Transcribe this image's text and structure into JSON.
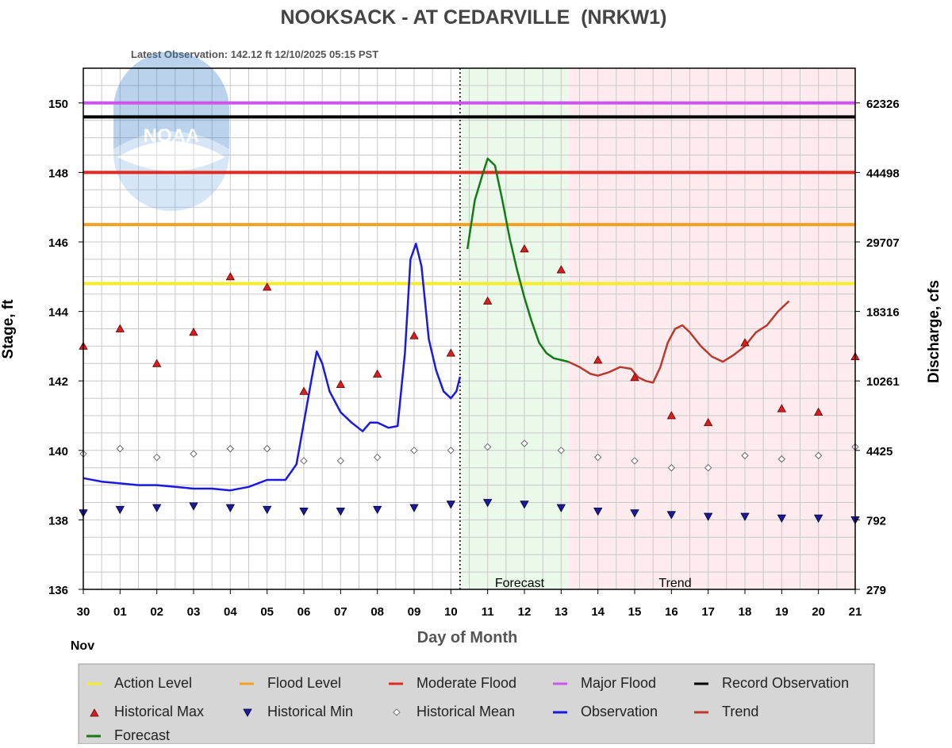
{
  "chart_data": {
    "type": "line",
    "title": "NOOKSACK - AT CEDARVILLE  (NRKW1)",
    "subtitle": "Latest Observation: 142.12 ft 12/10/2025 05:15 PST",
    "xlabel": "Day of Month",
    "ylabel": "Stage, ft",
    "y2label": "Discharge, cfs",
    "month_label": "Nov",
    "xlim": [
      0,
      21
    ],
    "ylim": [
      136,
      151
    ],
    "x_tick_labels": [
      "30",
      "01",
      "02",
      "03",
      "04",
      "05",
      "06",
      "07",
      "08",
      "09",
      "10",
      "11",
      "12",
      "13",
      "14",
      "15",
      "16",
      "17",
      "18",
      "19",
      "20",
      "21"
    ],
    "y_ticks": [
      136,
      138,
      140,
      142,
      144,
      146,
      148,
      150
    ],
    "y2_ticks": [
      {
        "stage": 136,
        "label": "279"
      },
      {
        "stage": 138,
        "label": "792"
      },
      {
        "stage": 140,
        "label": "4425"
      },
      {
        "stage": 142,
        "label": "10261"
      },
      {
        "stage": 144,
        "label": "18316"
      },
      {
        "stage": 146,
        "label": "29707"
      },
      {
        "stage": 148,
        "label": "44498"
      },
      {
        "stage": 150,
        "label": "62326"
      }
    ],
    "grid": true,
    "logo_text": "NOAA",
    "regions": [
      {
        "name": "Forecast",
        "x": [
          10.3,
          13.2
        ],
        "color": "#eaf9ea"
      },
      {
        "name": "Trend",
        "x": [
          13.2,
          21
        ],
        "color": "#fdebee"
      }
    ],
    "latest_obs_x": 10.25,
    "thresholds": [
      {
        "name": "Action Level",
        "value": 144.8,
        "color": "#f5ec2b"
      },
      {
        "name": "Flood Level",
        "value": 146.5,
        "color": "#f5a021"
      },
      {
        "name": "Moderate Flood",
        "value": 148.0,
        "color": "#e22a22"
      },
      {
        "name": "Major Flood",
        "value": 150.0,
        "color": "#cc55ee"
      },
      {
        "name": "Record Observation",
        "value": 149.6,
        "color": "#000000"
      }
    ],
    "series": [
      {
        "name": "Observation",
        "color": "#1a1adf",
        "x": [
          0,
          0.5,
          1,
          1.5,
          2,
          2.5,
          3,
          3.5,
          4,
          4.5,
          5,
          5.5,
          5.8,
          6.0,
          6.2,
          6.35,
          6.5,
          6.7,
          7.0,
          7.3,
          7.6,
          7.8,
          8.0,
          8.3,
          8.55,
          8.75,
          8.9,
          9.05,
          9.2,
          9.4,
          9.6,
          9.8,
          10.0,
          10.15,
          10.25
        ],
        "y": [
          139.2,
          139.1,
          139.05,
          139.0,
          139.0,
          138.95,
          138.9,
          138.9,
          138.85,
          138.95,
          139.15,
          139.15,
          139.6,
          140.8,
          142.0,
          142.85,
          142.5,
          141.7,
          141.1,
          140.8,
          140.55,
          140.8,
          140.8,
          140.65,
          140.7,
          142.8,
          145.5,
          145.95,
          145.3,
          143.2,
          142.3,
          141.7,
          141.5,
          141.7,
          142.12
        ]
      },
      {
        "name": "Forecast",
        "color": "#157a15",
        "x": [
          10.45,
          10.65,
          10.85,
          11.0,
          11.2,
          11.4,
          11.6,
          11.8,
          12.0,
          12.2,
          12.4,
          12.6,
          12.8,
          13.0,
          13.2
        ],
        "y": [
          145.8,
          147.2,
          147.9,
          148.4,
          148.2,
          147.2,
          146.1,
          145.2,
          144.4,
          143.7,
          143.1,
          142.8,
          142.65,
          142.6,
          142.55
        ]
      },
      {
        "name": "Trend",
        "color": "#b83a2e",
        "x": [
          13.2,
          13.5,
          13.8,
          14.0,
          14.3,
          14.6,
          14.9,
          15.1,
          15.3,
          15.5,
          15.7,
          15.9,
          16.1,
          16.3,
          16.5,
          16.8,
          17.1,
          17.4,
          17.7,
          18.0,
          18.3,
          18.6,
          18.9,
          19.2
        ],
        "y": [
          142.55,
          142.4,
          142.2,
          142.15,
          142.25,
          142.4,
          142.35,
          142.1,
          142.0,
          141.95,
          142.4,
          143.1,
          143.5,
          143.6,
          143.4,
          143.0,
          142.7,
          142.55,
          142.75,
          143.0,
          143.4,
          143.6,
          144.0,
          144.3
        ]
      }
    ],
    "historical_max": {
      "x": [
        0,
        1,
        2,
        3,
        4,
        5,
        6,
        7,
        8,
        9,
        10,
        11,
        12,
        13,
        14,
        15,
        16,
        17,
        18,
        19,
        20,
        21
      ],
      "y": [
        143.0,
        143.5,
        142.5,
        143.4,
        145.0,
        144.7,
        141.7,
        141.9,
        142.2,
        143.3,
        142.8,
        144.3,
        145.8,
        145.2,
        142.6,
        142.1,
        141.0,
        140.8,
        143.1,
        141.2,
        141.1,
        142.7
      ]
    },
    "historical_min": {
      "x": [
        0,
        1,
        2,
        3,
        4,
        5,
        6,
        7,
        8,
        9,
        10,
        11,
        12,
        13,
        14,
        15,
        16,
        17,
        18,
        19,
        20,
        21
      ],
      "y": [
        138.2,
        138.3,
        138.35,
        138.4,
        138.35,
        138.3,
        138.25,
        138.25,
        138.3,
        138.35,
        138.45,
        138.5,
        138.45,
        138.35,
        138.25,
        138.2,
        138.15,
        138.1,
        138.1,
        138.05,
        138.05,
        138.0
      ]
    },
    "historical_mean": {
      "x": [
        0,
        1,
        2,
        3,
        4,
        5,
        6,
        7,
        8,
        9,
        10,
        11,
        12,
        13,
        14,
        15,
        16,
        17,
        18,
        19,
        20,
        21
      ],
      "y": [
        139.9,
        140.05,
        139.8,
        139.9,
        140.05,
        140.05,
        139.7,
        139.7,
        139.8,
        140.0,
        140.0,
        140.1,
        140.2,
        140.0,
        139.8,
        139.7,
        139.5,
        139.5,
        139.85,
        139.75,
        139.85,
        140.1
      ]
    },
    "legend": {
      "placement": "bottom",
      "items": [
        {
          "label": "Action Level",
          "marker": "line",
          "color": "#f5ec2b"
        },
        {
          "label": "Flood Level",
          "marker": "line",
          "color": "#f5a021"
        },
        {
          "label": "Moderate Flood",
          "marker": "line",
          "color": "#e22a22"
        },
        {
          "label": "Major Flood",
          "marker": "line",
          "color": "#cc55ee"
        },
        {
          "label": "Record Observation",
          "marker": "line",
          "color": "#000000"
        },
        {
          "label": "Historical Max",
          "marker": "triangle-up",
          "color": "#d42020"
        },
        {
          "label": "Historical Min",
          "marker": "triangle-down",
          "color": "#1a1a9a"
        },
        {
          "label": "Historical Mean",
          "marker": "diamond",
          "color": "#777777"
        },
        {
          "label": "Observation",
          "marker": "line",
          "color": "#1a1adf"
        },
        {
          "label": "Trend",
          "marker": "line",
          "color": "#b83a2e"
        },
        {
          "label": "Forecast",
          "marker": "line",
          "color": "#157a15"
        }
      ]
    }
  }
}
